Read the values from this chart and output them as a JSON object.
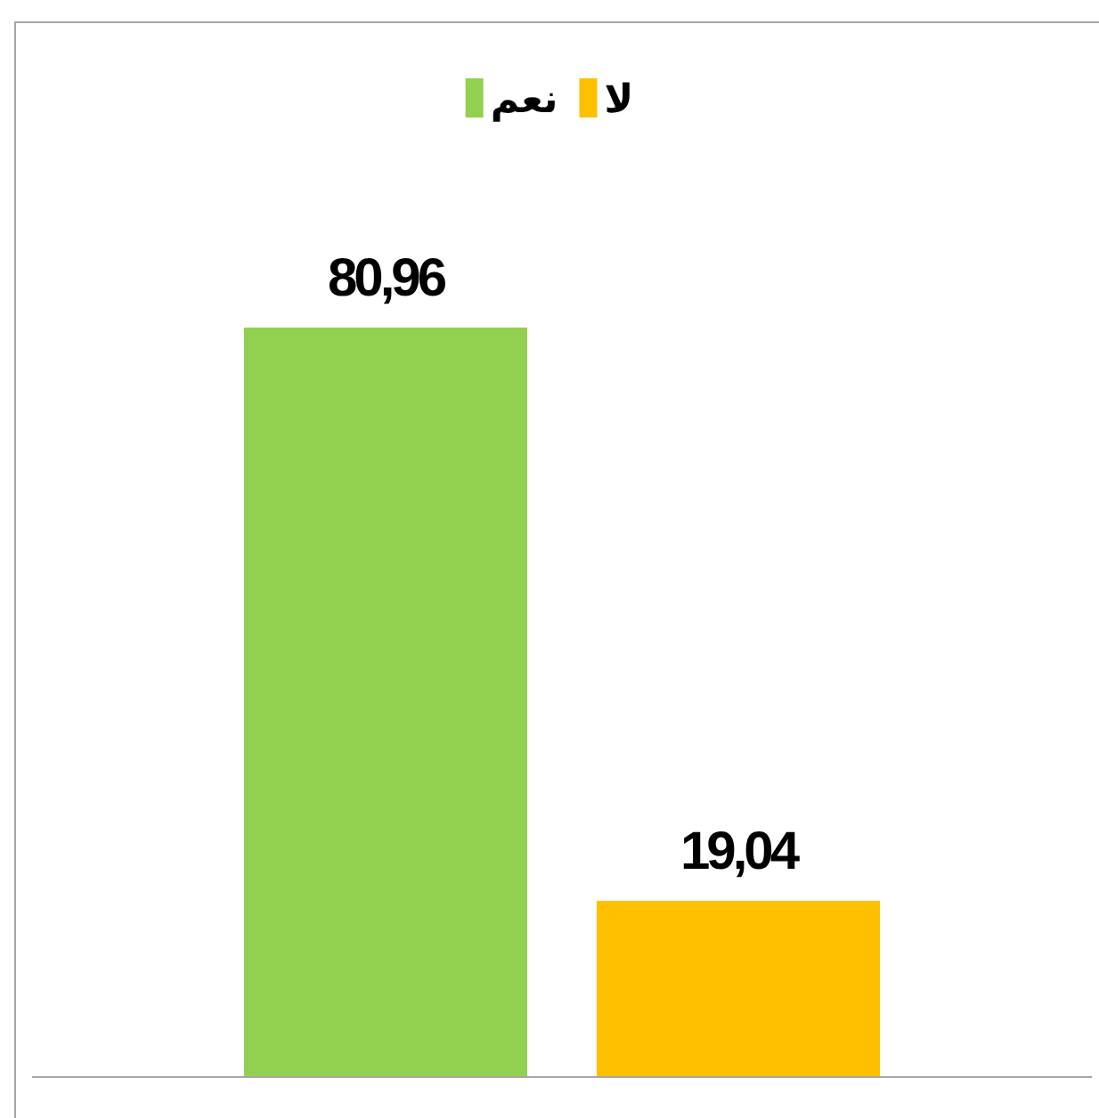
{
  "chart_data": {
    "type": "bar",
    "categories": [
      null
    ],
    "series": [
      {
        "name": "نعم",
        "color": "#92d050",
        "values": [
          80.96
        ],
        "value_labels": [
          "80,96"
        ]
      },
      {
        "name": "لا",
        "color": "#ffc000",
        "values": [
          19.04
        ],
        "value_labels": [
          "19,04"
        ]
      }
    ],
    "legend": "top"
  }
}
